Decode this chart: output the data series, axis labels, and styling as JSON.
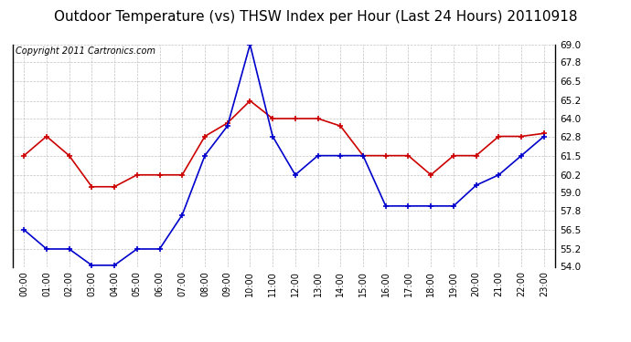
{
  "title": "Outdoor Temperature (vs) THSW Index per Hour (Last 24 Hours) 20110918",
  "copyright": "Copyright 2011 Cartronics.com",
  "hours": [
    "00:00",
    "01:00",
    "02:00",
    "03:00",
    "04:00",
    "05:00",
    "06:00",
    "07:00",
    "08:00",
    "09:00",
    "10:00",
    "11:00",
    "12:00",
    "13:00",
    "14:00",
    "15:00",
    "16:00",
    "17:00",
    "18:00",
    "19:00",
    "20:00",
    "21:00",
    "22:00",
    "23:00"
  ],
  "temp_red": [
    61.5,
    62.8,
    61.5,
    59.4,
    59.4,
    60.2,
    60.2,
    60.2,
    62.8,
    63.7,
    65.2,
    64.0,
    64.0,
    64.0,
    63.5,
    61.5,
    61.5,
    61.5,
    60.2,
    61.5,
    61.5,
    62.8,
    62.8,
    63.0
  ],
  "thsw_blue": [
    56.5,
    55.2,
    55.2,
    54.1,
    54.1,
    55.2,
    55.2,
    57.5,
    61.5,
    63.5,
    69.0,
    62.8,
    60.2,
    61.5,
    61.5,
    61.5,
    58.1,
    58.1,
    58.1,
    58.1,
    59.5,
    60.2,
    61.5,
    62.8
  ],
  "ylim_min": 54.0,
  "ylim_max": 69.0,
  "yticks": [
    54.0,
    55.2,
    56.5,
    57.8,
    59.0,
    60.2,
    61.5,
    62.8,
    64.0,
    65.2,
    66.5,
    67.8,
    69.0
  ],
  "bg_color": "#ffffff",
  "plot_bg_color": "#ffffff",
  "grid_color": "#bbbbbb",
  "red_color": "#cc0000",
  "blue_color": "#0000cc",
  "title_fontsize": 11,
  "copyright_fontsize": 7
}
